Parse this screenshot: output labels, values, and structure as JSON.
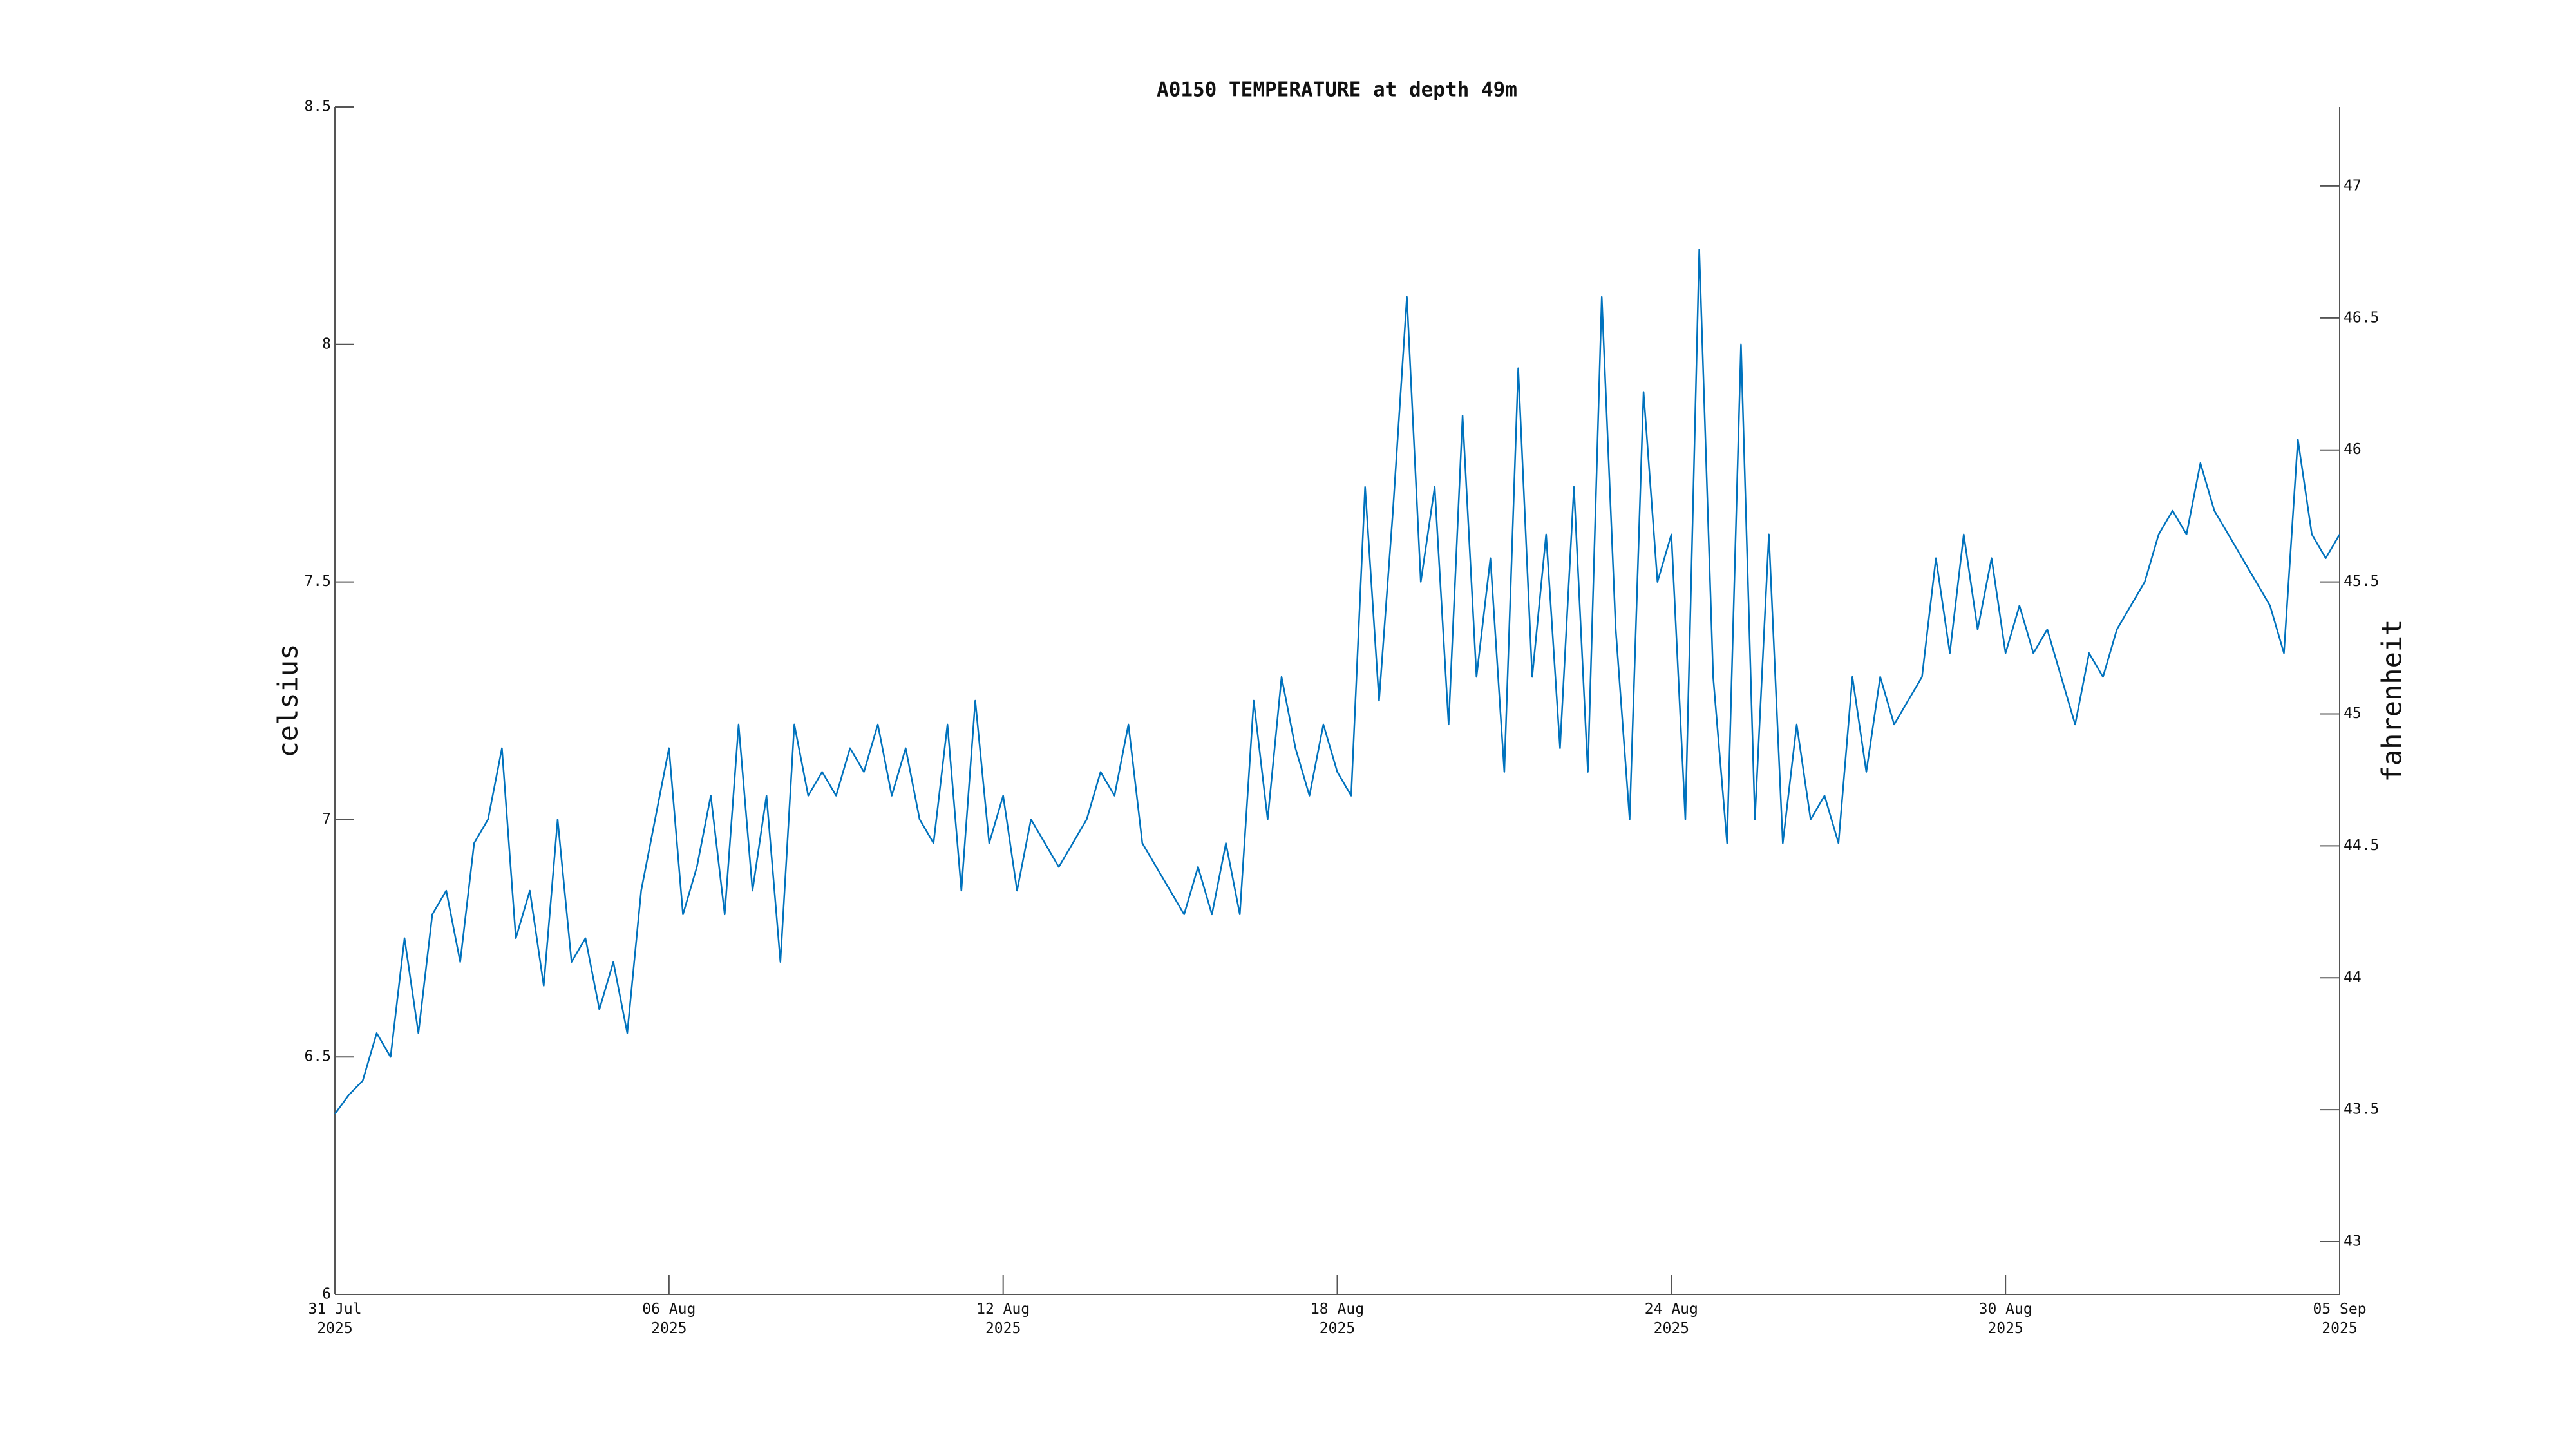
{
  "chart_data": {
    "type": "line",
    "title": "A0150 TEMPERATURE at depth 49m",
    "y_label": "celsius",
    "y2_label": "fahrenheit",
    "color": "#0072bd",
    "xlim": [
      0,
      36
    ],
    "xticks": [
      {
        "value": 0,
        "label": "31 Jul 2025"
      },
      {
        "value": 6,
        "label": "06 Aug 2025"
      },
      {
        "value": 12,
        "label": "12 Aug 2025"
      },
      {
        "value": 18,
        "label": "18 Aug 2025"
      },
      {
        "value": 24,
        "label": "24 Aug 2025"
      },
      {
        "value": 30,
        "label": "30 Aug 2025"
      },
      {
        "value": 36,
        "label": "05 Sep 2025"
      }
    ],
    "ylim": [
      6,
      8.5
    ],
    "yticks": [
      6,
      6.5,
      7,
      7.5,
      8,
      8.5
    ],
    "y2lim": [
      42.8,
      47.3
    ],
    "y2ticks": [
      43,
      43.5,
      44,
      44.5,
      45,
      45.5,
      46,
      46.5,
      47
    ],
    "x": [
      0,
      0.25,
      0.5,
      0.75,
      1,
      1.25,
      1.5,
      1.75,
      2,
      2.25,
      2.5,
      2.75,
      3,
      3.25,
      3.5,
      3.75,
      4,
      4.25,
      4.5,
      4.75,
      5,
      5.25,
      5.5,
      5.75,
      6,
      6.25,
      6.5,
      6.75,
      7,
      7.25,
      7.5,
      7.75,
      8,
      8.25,
      8.5,
      8.75,
      9,
      9.25,
      9.5,
      9.75,
      10,
      10.25,
      10.5,
      10.75,
      11,
      11.25,
      11.5,
      11.75,
      12,
      12.25,
      12.5,
      12.75,
      13,
      13.25,
      13.5,
      13.75,
      14,
      14.25,
      14.5,
      14.75,
      15,
      15.25,
      15.5,
      15.75,
      16,
      16.25,
      16.5,
      16.75,
      17,
      17.25,
      17.5,
      17.75,
      18,
      18.25,
      18.5,
      18.75,
      19,
      19.25,
      19.5,
      19.75,
      20,
      20.25,
      20.5,
      20.75,
      21,
      21.25,
      21.5,
      21.75,
      22,
      22.25,
      22.5,
      22.75,
      23,
      23.25,
      23.5,
      23.75,
      24,
      24.25,
      24.5,
      24.75,
      25,
      25.25,
      25.5,
      25.75,
      26,
      26.25,
      26.5,
      26.75,
      27,
      27.25,
      27.5,
      27.75,
      28,
      28.25,
      28.5,
      28.75,
      29,
      29.25,
      29.5,
      29.75,
      30,
      30.25,
      30.5,
      30.75,
      31,
      31.25,
      31.5,
      31.75,
      32,
      32.25,
      32.5,
      32.75,
      33,
      33.25,
      33.5,
      33.75,
      34,
      34.25,
      34.5,
      34.75,
      35,
      35.25,
      35.5,
      35.75,
      36
    ],
    "values": [
      6.38,
      6.42,
      6.45,
      6.55,
      6.5,
      6.75,
      6.55,
      6.8,
      6.85,
      6.7,
      6.95,
      7.0,
      7.15,
      6.75,
      6.85,
      6.65,
      7.0,
      6.7,
      6.75,
      6.6,
      6.7,
      6.55,
      6.85,
      7.0,
      7.15,
      6.8,
      6.9,
      7.05,
      6.8,
      7.2,
      6.85,
      7.05,
      6.7,
      7.2,
      7.05,
      7.1,
      7.05,
      7.15,
      7.1,
      7.2,
      7.05,
      7.15,
      7.0,
      6.95,
      7.2,
      6.85,
      7.25,
      6.95,
      7.05,
      6.85,
      7.0,
      6.95,
      6.9,
      6.95,
      7.0,
      7.1,
      7.05,
      7.2,
      6.95,
      6.9,
      6.85,
      6.8,
      6.9,
      6.8,
      6.95,
      6.8,
      7.25,
      7.0,
      7.3,
      7.15,
      7.05,
      7.2,
      7.1,
      7.05,
      7.7,
      7.25,
      7.65,
      8.1,
      7.5,
      7.7,
      7.2,
      7.85,
      7.3,
      7.55,
      7.1,
      7.95,
      7.3,
      7.6,
      7.15,
      7.7,
      7.1,
      8.1,
      7.4,
      7.0,
      7.9,
      7.5,
      7.6,
      7.0,
      8.2,
      7.3,
      6.95,
      8.0,
      7.0,
      7.6,
      6.95,
      7.2,
      7.0,
      7.05,
      6.95,
      7.3,
      7.1,
      7.3,
      7.2,
      7.25,
      7.3,
      7.55,
      7.35,
      7.6,
      7.4,
      7.55,
      7.35,
      7.45,
      7.35,
      7.4,
      7.3,
      7.2,
      7.35,
      7.3,
      7.4,
      7.45,
      7.5,
      7.6,
      7.65,
      7.6,
      7.75,
      7.65,
      7.6,
      7.55,
      7.5,
      7.45,
      7.35,
      7.8,
      7.6,
      7.55,
      7.6
    ]
  }
}
